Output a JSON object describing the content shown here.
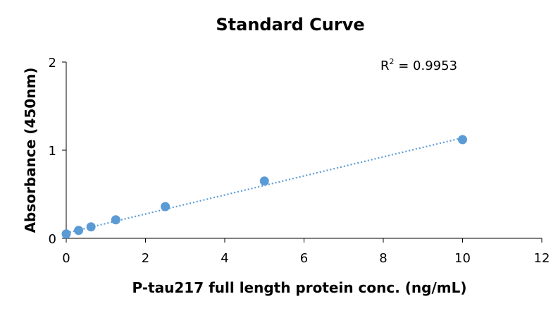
{
  "chart_data": {
    "type": "scatter",
    "title": "Standard Curve",
    "xlabel": "P-tau217 full length protein conc. (ng/mL)",
    "ylabel": "Absorbance (450nm)",
    "xlim": [
      0,
      12
    ],
    "ylim": [
      0,
      2
    ],
    "xticks": [
      "0",
      "2",
      "4",
      "6",
      "8",
      "10",
      "12"
    ],
    "yticks": [
      "0",
      "1",
      "2"
    ],
    "grid": false,
    "points": {
      "x": [
        0,
        0.3125,
        0.625,
        1.25,
        2.5,
        5,
        10
      ],
      "y": [
        0.05,
        0.09,
        0.13,
        0.21,
        0.36,
        0.65,
        1.12
      ]
    },
    "trendline": {
      "style": "dotted",
      "x": [
        0,
        10
      ],
      "y": [
        0.06,
        1.14
      ]
    },
    "annotation": {
      "r2_prefix": "R",
      "r2_sup": "2",
      "r2_value": " = 0.9953"
    },
    "colors": {
      "marker": "#5B9BD5",
      "trendline": "#5B9BD5",
      "axis": "#000000"
    }
  }
}
